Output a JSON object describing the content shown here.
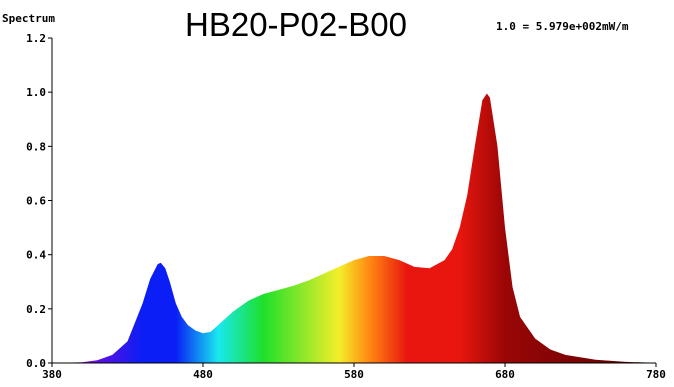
{
  "chart_data": {
    "type": "area",
    "title": "HB20-P02-B00",
    "corner_label": "Spectrum",
    "scale_note": "1.0 = 5.979e+002mW/m",
    "xlim": [
      380,
      780
    ],
    "ylim": [
      0,
      1.2
    ],
    "x_ticks": [
      380,
      480,
      580,
      680,
      780
    ],
    "y_ticks": [
      "0.0",
      "0.2",
      "0.4",
      "0.6",
      "0.8",
      "1.0",
      "1.2"
    ],
    "series": [
      {
        "x": [
          380,
          400,
          410,
          420,
          430,
          440,
          445,
          450,
          452,
          455,
          458,
          462,
          466,
          470,
          475,
          480,
          485,
          490,
          500,
          510,
          520,
          530,
          540,
          550,
          560,
          570,
          580,
          590,
          600,
          610,
          620,
          630,
          640,
          645,
          650,
          655,
          660,
          665,
          668,
          670,
          675,
          680,
          685,
          690,
          700,
          710,
          720,
          740,
          760,
          780
        ],
        "values": [
          0,
          0.003,
          0.01,
          0.03,
          0.08,
          0.22,
          0.31,
          0.365,
          0.37,
          0.35,
          0.3,
          0.22,
          0.17,
          0.14,
          0.12,
          0.11,
          0.115,
          0.14,
          0.19,
          0.23,
          0.255,
          0.27,
          0.285,
          0.305,
          0.33,
          0.355,
          0.38,
          0.395,
          0.395,
          0.38,
          0.355,
          0.35,
          0.38,
          0.42,
          0.5,
          0.62,
          0.8,
          0.97,
          0.995,
          0.98,
          0.8,
          0.5,
          0.28,
          0.17,
          0.09,
          0.05,
          0.03,
          0.012,
          0.004,
          0.001
        ]
      }
    ],
    "colors": {
      "violet": "#7b0ad9",
      "blue": "#0a1ef5",
      "cyan": "#18e8f0",
      "green": "#1ee02a",
      "yellow": "#f4ee2a",
      "orange": "#ff8a12",
      "red": "#e8160e",
      "dark_red": "#9a0606",
      "deep_red": "#5a0000"
    }
  }
}
